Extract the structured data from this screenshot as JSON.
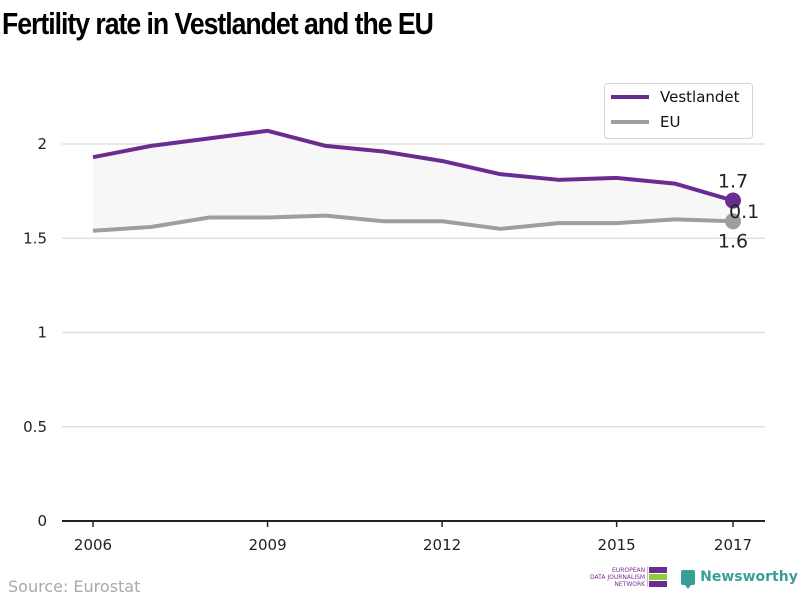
{
  "chart_data": {
    "type": "line",
    "title": "Fertility rate in Vestlandet and the EU",
    "xlabel": "",
    "ylabel": "",
    "x": [
      2006,
      2007,
      2008,
      2009,
      2010,
      2011,
      2012,
      2013,
      2014,
      2015,
      2016,
      2017
    ],
    "x_ticks": [
      "2006",
      "2009",
      "2012",
      "2015",
      "2017"
    ],
    "y_ticks": [
      "0",
      "0.5",
      "1",
      "1.5",
      "2"
    ],
    "ylim": [
      0,
      2.3
    ],
    "xlim": [
      2005.5,
      2017.5
    ],
    "grid": true,
    "legend_position": "top-right",
    "series": [
      {
        "name": "Vestlandet",
        "color": "#6a2c91",
        "values": [
          1.93,
          1.99,
          2.03,
          2.07,
          1.99,
          1.96,
          1.91,
          1.84,
          1.81,
          1.82,
          1.79,
          1.7
        ]
      },
      {
        "name": "EU",
        "color": "#9e9e9e",
        "values": [
          1.54,
          1.56,
          1.61,
          1.61,
          1.62,
          1.59,
          1.59,
          1.55,
          1.58,
          1.58,
          1.6,
          1.59
        ]
      }
    ],
    "annotations": {
      "vestlandet_end": "1.7",
      "eu_end": "1.6",
      "difference": "0.1"
    },
    "fill_between_color": "#f7f7f8"
  },
  "footer": {
    "source": "Source: Eurostat",
    "ejn_lines": [
      "EUROPEAN",
      "DATA JOURNALISM",
      "NETWORK"
    ],
    "ejn_colors": [
      "#6a2c91",
      "#8fce3a",
      "#6a2c91"
    ],
    "newsworthy": "Newsworthy"
  }
}
